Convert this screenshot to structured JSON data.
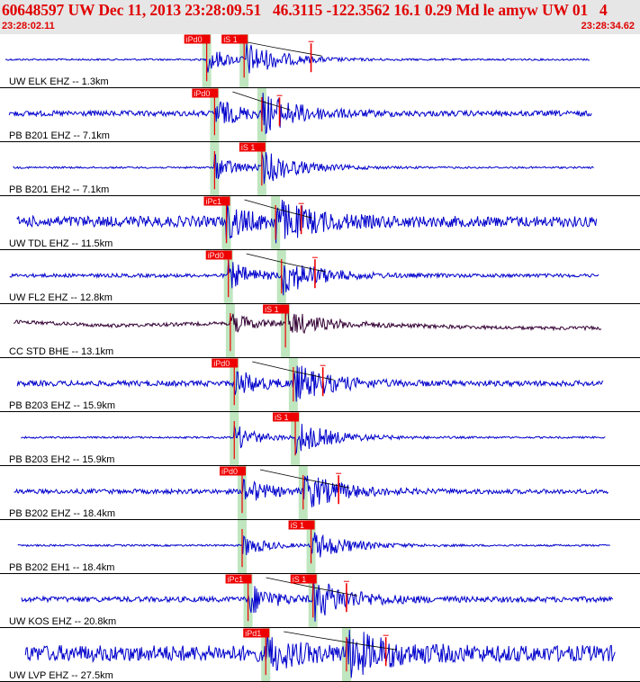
{
  "header": {
    "title": "60648597 UW Dec 11, 2013 23:28:09.51   46.3115 -122.3562 16.1 0.29 Md le amyw UW 01   4",
    "start_time": "23:28:02.11",
    "end_time": "23:28:34.62"
  },
  "colors": {
    "trace": "#0000cc",
    "trace_alt": "#330033",
    "pick_box": "#ee0000",
    "pick_text": "#ffe0e0",
    "pick_line": "#ee0000",
    "band": "#bfe6bf",
    "curve": "#000000",
    "separator": "#000000"
  },
  "chart_data": {
    "type": "line",
    "title": "",
    "time_range": [
      "23:28:02.11",
      "23:28:34.62"
    ],
    "traces": [
      {
        "label": "UW ELK EHZ -- 1.3km",
        "color": "trace",
        "noise": 1.0,
        "burst": 18,
        "picks": [
          {
            "text": "iPd0",
            "t": 10.5
          },
          {
            "text": "iS 1",
            "t": 12.4
          }
        ],
        "coda_t": 15.8
      },
      {
        "label": "PB B201 EHZ -- 7.1km",
        "color": "trace",
        "noise": 3.0,
        "burst": 21,
        "picks": [
          {
            "text": "iPd0",
            "t": 10.9
          },
          {
            "text": "",
            "t": 13.3
          }
        ],
        "coda_t": 14.2
      },
      {
        "label": "PB B201 EH2 -- 7.1km",
        "color": "trace",
        "noise": 1.0,
        "burst": 18,
        "picks": [
          {
            "text": "",
            "t": 10.9
          },
          {
            "text": "iS 1",
            "t": 13.3
          }
        ],
        "coda_t": null
      },
      {
        "label": "UW TDL EHZ -- 11.5km",
        "color": "trace",
        "noise": 6.0,
        "burst": 22,
        "picks": [
          {
            "text": "iPc1",
            "t": 11.5
          },
          {
            "text": "",
            "t": 14.0
          }
        ],
        "coda_t": 15.3
      },
      {
        "label": "UW FL2 EHZ -- 12.8km",
        "color": "trace",
        "noise": 2.0,
        "burst": 20,
        "picks": [
          {
            "text": "iPd0",
            "t": 11.6
          },
          {
            "text": "",
            "t": 14.3
          }
        ],
        "coda_t": 16.0
      },
      {
        "label": "CC STD BHE -- 13.1km",
        "color": "trace_alt",
        "noise": 2.0,
        "burst": 14,
        "picks": [
          {
            "text": "",
            "t": 11.7
          },
          {
            "text": "iS 1",
            "t": 14.5
          }
        ],
        "coda_t": null
      },
      {
        "label": "PB B203 EHZ -- 15.9km",
        "color": "trace",
        "noise": 3.0,
        "burst": 20,
        "picks": [
          {
            "text": "iPd0",
            "t": 11.9
          },
          {
            "text": "",
            "t": 14.9
          }
        ],
        "coda_t": 16.4
      },
      {
        "label": "PB B203 EH2 -- 15.9km",
        "color": "trace",
        "noise": 1.0,
        "burst": 18,
        "picks": [
          {
            "text": "",
            "t": 11.9
          },
          {
            "text": "iS 1",
            "t": 15.0
          }
        ],
        "coda_t": null
      },
      {
        "label": "PB B202 EHZ -- 18.4km",
        "color": "trace",
        "noise": 2.5,
        "burst": 20,
        "picks": [
          {
            "text": "iPd0",
            "t": 12.3
          },
          {
            "text": "",
            "t": 15.4
          }
        ],
        "coda_t": 17.2
      },
      {
        "label": "PB B202 EH1 -- 18.4km",
        "color": "trace",
        "noise": 1.0,
        "burst": 16,
        "picks": [
          {
            "text": "",
            "t": 12.3
          },
          {
            "text": "iS 1",
            "t": 15.8
          }
        ],
        "coda_t": null
      },
      {
        "label": "UW KOS EHZ -- 20.8km",
        "color": "trace",
        "noise": 3.0,
        "burst": 22,
        "picks": [
          {
            "text": "iPc1",
            "t": 12.6
          },
          {
            "text": "iS 1",
            "t": 15.9
          }
        ],
        "coda_t": 17.6
      },
      {
        "label": "UW LVP EHZ -- 27.5km",
        "color": "trace",
        "noise": 9.0,
        "burst": 24,
        "picks": [
          {
            "text": "iPd1",
            "t": 13.5
          },
          {
            "text": "",
            "t": 17.6
          }
        ],
        "coda_t": 19.6
      }
    ]
  }
}
